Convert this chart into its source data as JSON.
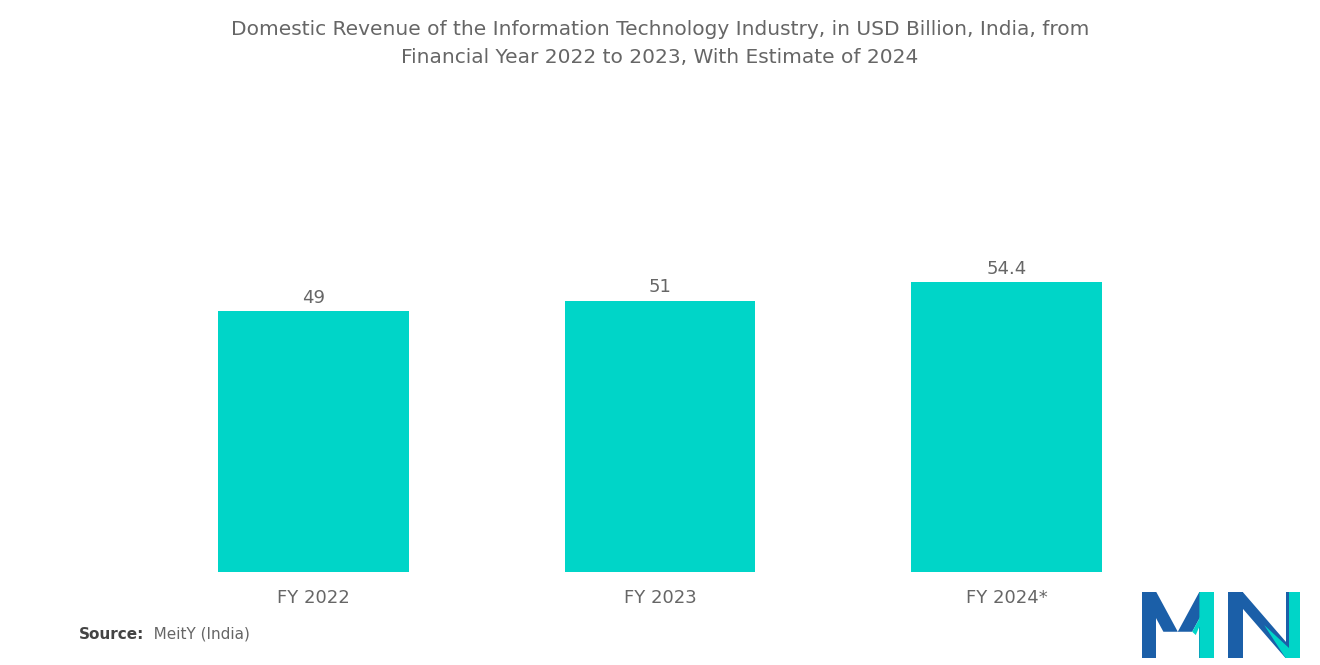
{
  "title_line1": "Domestic Revenue of the Information Technology Industry, in USD Billion, India, from",
  "title_line2": "Financial Year 2022 to 2023, With Estimate of 2024",
  "categories": [
    "FY 2022",
    "FY 2023",
    "FY 2024*"
  ],
  "values": [
    49,
    51,
    54.4
  ],
  "value_labels": [
    "49",
    "51",
    "54.4"
  ],
  "bar_color": "#00D5C8",
  "background_color": "#ffffff",
  "title_color": "#666666",
  "label_color": "#666666",
  "value_color": "#666666",
  "source_bold": "Source:",
  "source_normal": "   MeitY (India)",
  "title_fontsize": 14.5,
  "label_fontsize": 13,
  "value_fontsize": 13,
  "source_fontsize": 11,
  "ylim": [
    0,
    70
  ],
  "bar_width": 0.55,
  "x_positions": [
    0,
    1,
    2
  ]
}
